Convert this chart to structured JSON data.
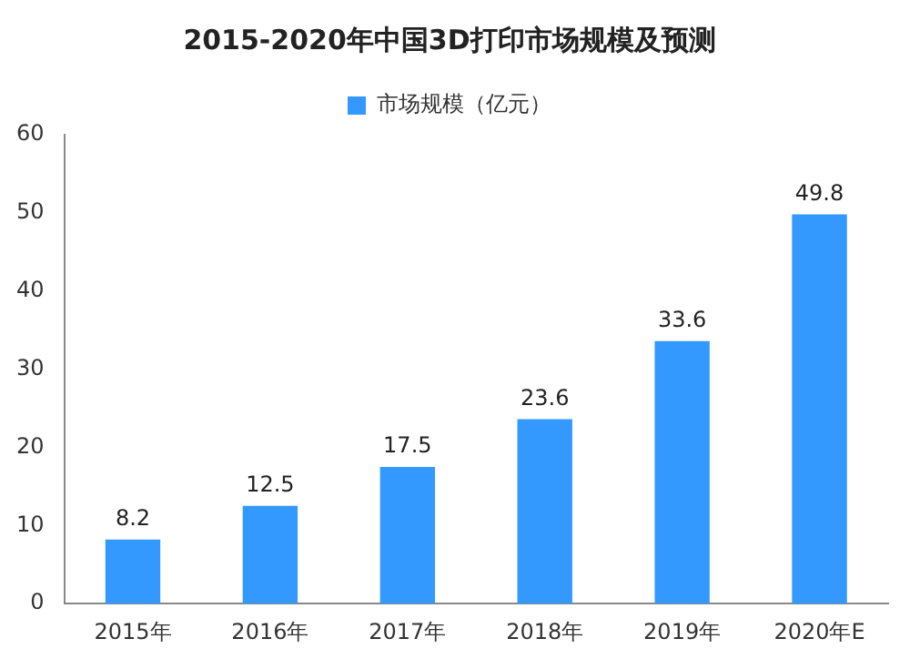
{
  "chart_data": {
    "type": "bar",
    "title": "2015-2020年中国3D打印市场规模及预测",
    "categories": [
      "2015年",
      "2016年",
      "2017年",
      "2018年",
      "2019年",
      "2020年E"
    ],
    "series": [
      {
        "name": "市场规模（亿元）",
        "color": "#3399ff",
        "values": [
          8.2,
          12.5,
          17.5,
          23.6,
          33.6,
          49.8
        ]
      }
    ],
    "ylim": [
      0,
      60
    ],
    "yticks": [
      0,
      10,
      20,
      30,
      40,
      50,
      60
    ],
    "grid": false,
    "legend": "top",
    "data_labels": true
  }
}
